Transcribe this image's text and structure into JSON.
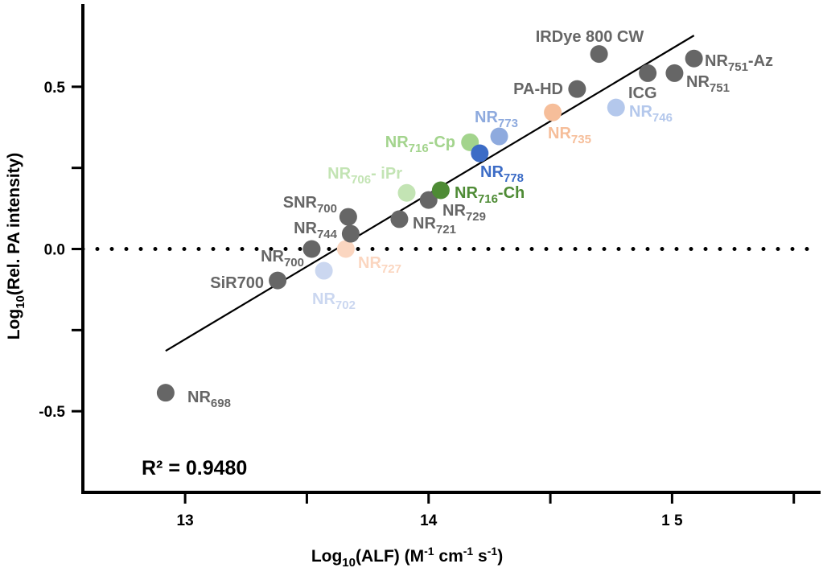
{
  "chart_data": {
    "type": "scatter",
    "xlabel": {
      "base": "Log",
      "sub": "10",
      "rest": "(ALF) (M",
      "sup1": "-1",
      "mid": " cm",
      "sup2": "-1",
      "mid2": " s",
      "sup3": "-1",
      "end": ")"
    },
    "ylabel": {
      "base": "Log",
      "sub": "10",
      "rest": "(Rel. PA intensity)"
    },
    "xlim": [
      12.58,
      15.61
    ],
    "ylim": [
      -0.75,
      0.755
    ],
    "x_ticks": [
      13,
      14,
      15
    ],
    "x_tick_labels": [
      "13",
      "14",
      "1 5"
    ],
    "x_minor_ticks": [
      13.5,
      14.5,
      15.5
    ],
    "y_ticks": [
      -0.5,
      0.0,
      0.5
    ],
    "y_tick_labels": [
      "-0.5",
      "0.0",
      "0.5"
    ],
    "y_minor_ticks": [
      -0.25,
      0.25
    ],
    "reference_line_y": 0.0,
    "fit": {
      "x": [
        12.92,
        15.09
      ],
      "y": [
        -0.314,
        0.658
      ]
    },
    "annotation": "R² = 0.9480",
    "points": [
      {
        "base": "NR",
        "sub": "698",
        "suffix": "",
        "x": 12.92,
        "y": -0.443,
        "color": "#666666"
      },
      {
        "base": "SiR700",
        "sub": "",
        "suffix": "",
        "x": 13.38,
        "y": -0.097,
        "color": "#666666"
      },
      {
        "base": "NR",
        "sub": "702",
        "suffix": "",
        "x": 13.57,
        "y": -0.067,
        "color": "#cbd7f0"
      },
      {
        "base": "NR",
        "sub": "700",
        "suffix": "",
        "x": 13.52,
        "y": 0.0,
        "color": "#666666"
      },
      {
        "base": "NR",
        "sub": "727",
        "suffix": "",
        "x": 13.66,
        "y": 0.0,
        "color": "#fbd6c0"
      },
      {
        "base": "NR",
        "sub": "744",
        "suffix": "",
        "x": 13.68,
        "y": 0.047,
        "color": "#666666"
      },
      {
        "base": "SNR",
        "sub": "700",
        "suffix": "",
        "x": 13.67,
        "y": 0.099,
        "color": "#666666"
      },
      {
        "base": "NR",
        "sub": "721",
        "suffix": "",
        "x": 13.88,
        "y": 0.092,
        "color": "#666666"
      },
      {
        "base": "NR",
        "sub": "729",
        "suffix": "",
        "x": 14.0,
        "y": 0.151,
        "color": "#666666"
      },
      {
        "base": "NR",
        "sub": "706",
        "suffix": "- iPr",
        "x": 13.91,
        "y": 0.173,
        "color": "#c3e4b4"
      },
      {
        "base": "NR",
        "sub": "716",
        "suffix": "-Ch",
        "x": 14.05,
        "y": 0.181,
        "color": "#4e8b35"
      },
      {
        "base": "NR",
        "sub": "716",
        "suffix": "-Cp",
        "x": 14.17,
        "y": 0.329,
        "color": "#a3d48d"
      },
      {
        "base": "NR",
        "sub": "778",
        "suffix": "",
        "x": 14.21,
        "y": 0.295,
        "color": "#3c6cc6"
      },
      {
        "base": "NR",
        "sub": "773",
        "suffix": "",
        "x": 14.29,
        "y": 0.347,
        "color": "#8eaade"
      },
      {
        "base": "NR",
        "sub": "735",
        "suffix": "",
        "x": 14.51,
        "y": 0.421,
        "color": "#f6be9a"
      },
      {
        "base": "PA-HD",
        "sub": "",
        "suffix": "",
        "x": 14.61,
        "y": 0.493,
        "color": "#666666"
      },
      {
        "base": "IRDye 800 CW",
        "sub": "",
        "suffix": "",
        "x": 14.7,
        "y": 0.601,
        "color": "#666666"
      },
      {
        "base": "NR",
        "sub": "746",
        "suffix": "",
        "x": 14.77,
        "y": 0.436,
        "color": "#b4c8ec"
      },
      {
        "base": "ICG",
        "sub": "",
        "suffix": "",
        "x": 14.9,
        "y": 0.542,
        "color": "#666666"
      },
      {
        "base": "NR",
        "sub": "751",
        "suffix": "",
        "x": 15.01,
        "y": 0.542,
        "color": "#666666"
      },
      {
        "base": "NR",
        "sub": "751",
        "suffix": "-Az",
        "x": 15.09,
        "y": 0.587,
        "color": "#666666"
      }
    ]
  }
}
